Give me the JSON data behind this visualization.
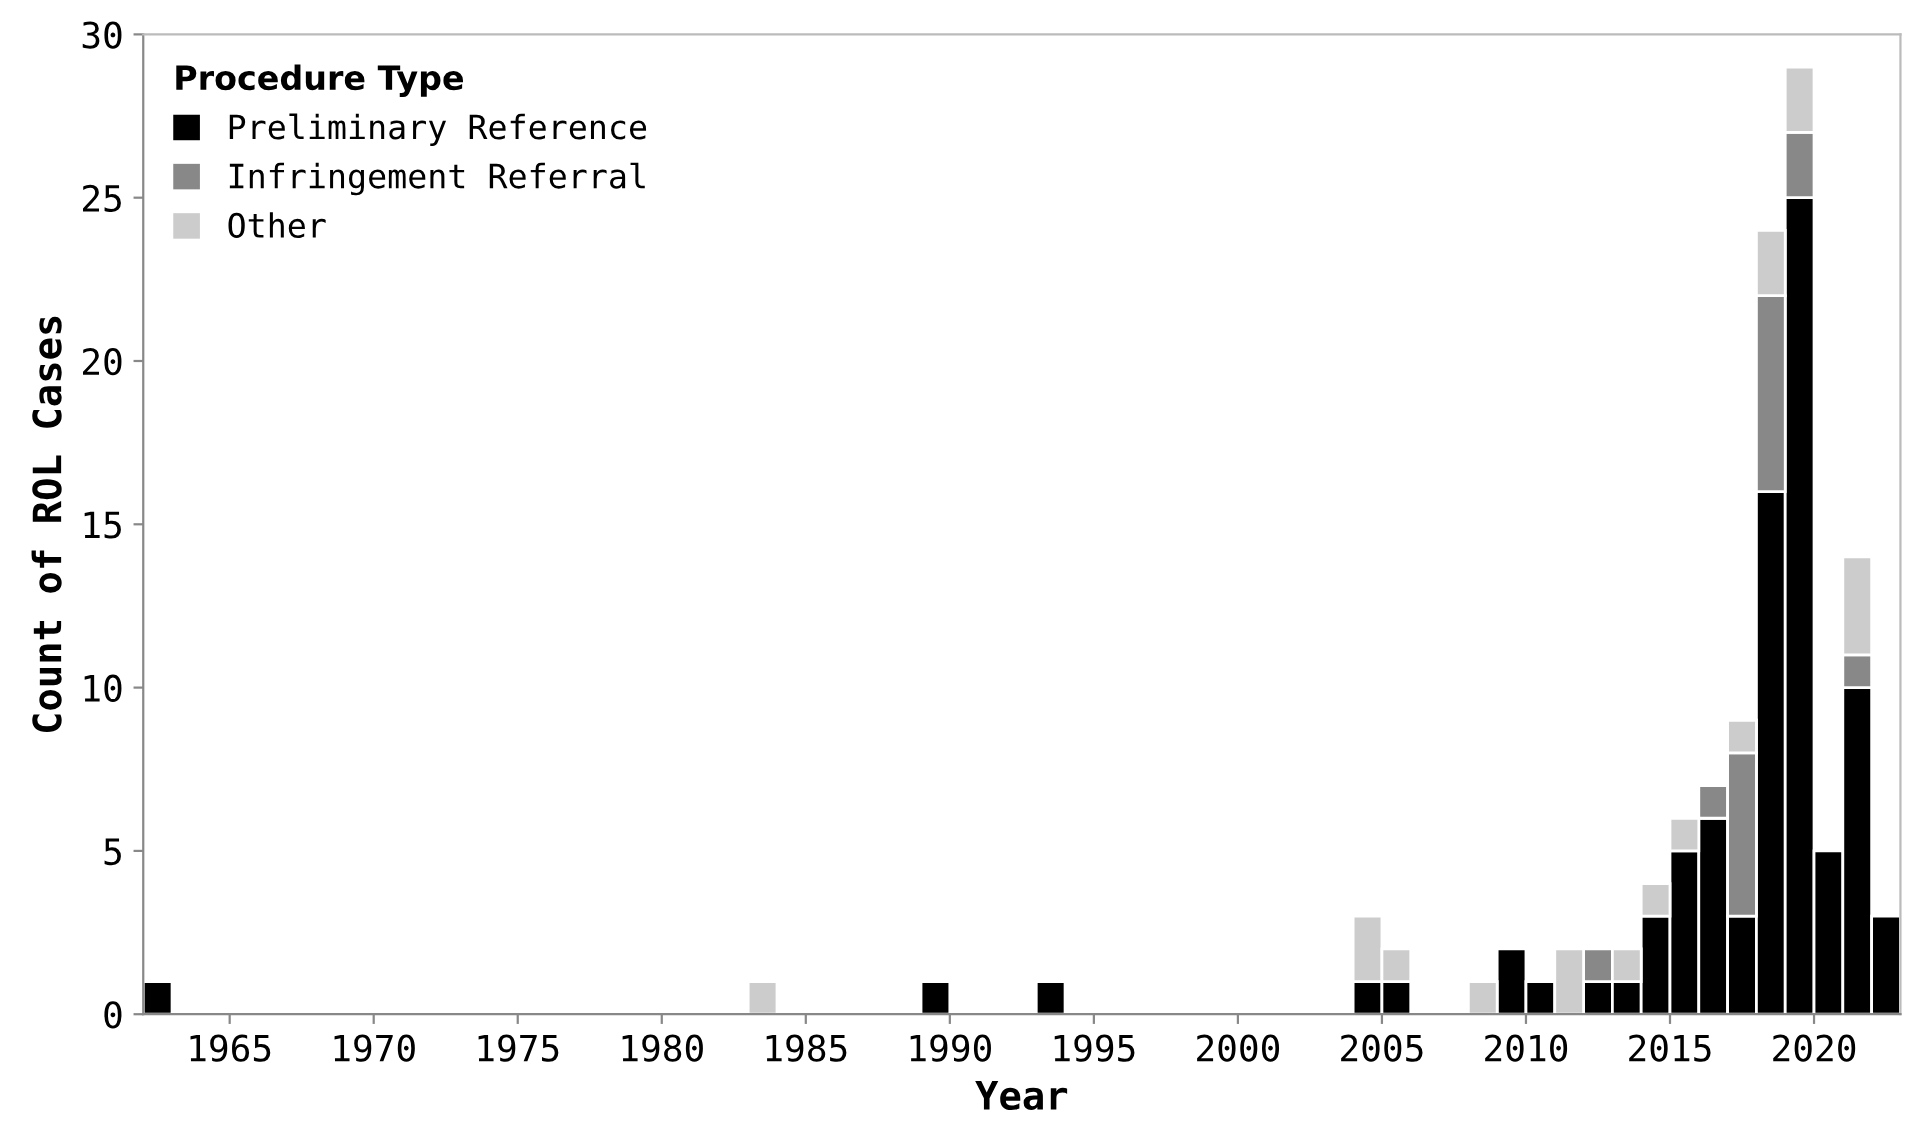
{
  "chart_data": {
    "type": "bar",
    "stacked": true,
    "xlabel": "Year",
    "ylabel": "Count of ROL Cases",
    "legend_title": "Procedure Type",
    "legend": "top left",
    "grid": false,
    "x": [
      1962.5,
      1983.5,
      1989.5,
      1993.5,
      2004.5,
      2005.5,
      2008.5,
      2009.5,
      2010.5,
      2011.5,
      2012.5,
      2013.5,
      2014.5,
      2015.5,
      2016.5,
      2017.5,
      2018.5,
      2019.5,
      2020.5,
      2021.5,
      2022.5
    ],
    "xlim": [
      1962,
      2023
    ],
    "xticks": [
      1965,
      1970,
      1975,
      1980,
      1985,
      1990,
      1995,
      2000,
      2005,
      2010,
      2015,
      2020
    ],
    "ylim": [
      0,
      30
    ],
    "yticks": [
      0,
      5,
      10,
      15,
      20,
      25,
      30
    ],
    "series": [
      {
        "name": "Preliminary Reference",
        "color": "#000000",
        "values": [
          1,
          0,
          1,
          1,
          1,
          1,
          0,
          2,
          1,
          0,
          1,
          1,
          3,
          5,
          6,
          3,
          16,
          25,
          5,
          10,
          3
        ]
      },
      {
        "name": "Infringement Referral",
        "color": "#888888",
        "values": [
          0,
          0,
          0,
          0,
          0,
          0,
          0,
          0,
          0,
          0,
          1,
          0,
          0,
          0,
          1,
          5,
          6,
          2,
          0,
          1,
          0
        ]
      },
      {
        "name": "Other",
        "color": "#cccccc",
        "values": [
          0,
          1,
          0,
          0,
          2,
          1,
          1,
          0,
          0,
          2,
          0,
          1,
          1,
          1,
          0,
          1,
          2,
          2,
          0,
          3,
          0
        ]
      }
    ]
  }
}
